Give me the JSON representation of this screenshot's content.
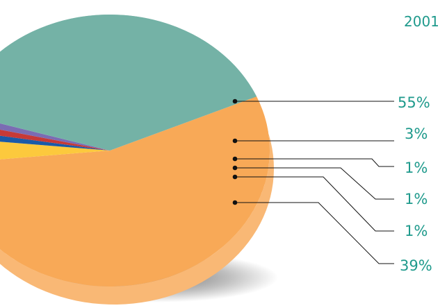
{
  "chart_data": {
    "type": "pie",
    "title": "2001",
    "slices": [
      {
        "value": 55,
        "label": "55%",
        "color": "#f8a957"
      },
      {
        "value": 3,
        "label": "3%",
        "color": "#fcc93d"
      },
      {
        "value": 1,
        "label": "1%",
        "color": "#1a5aa8"
      },
      {
        "value": 1,
        "label": "1%",
        "color": "#c63a37"
      },
      {
        "value": 1,
        "label": "1%",
        "color": "#7b6cb3"
      },
      {
        "value": 39,
        "label": "39%",
        "color": "#74b2a6"
      }
    ],
    "legend_placement": "right"
  },
  "colors": {
    "label_text": "#1f9a8c",
    "leader_line": "#111111"
  }
}
